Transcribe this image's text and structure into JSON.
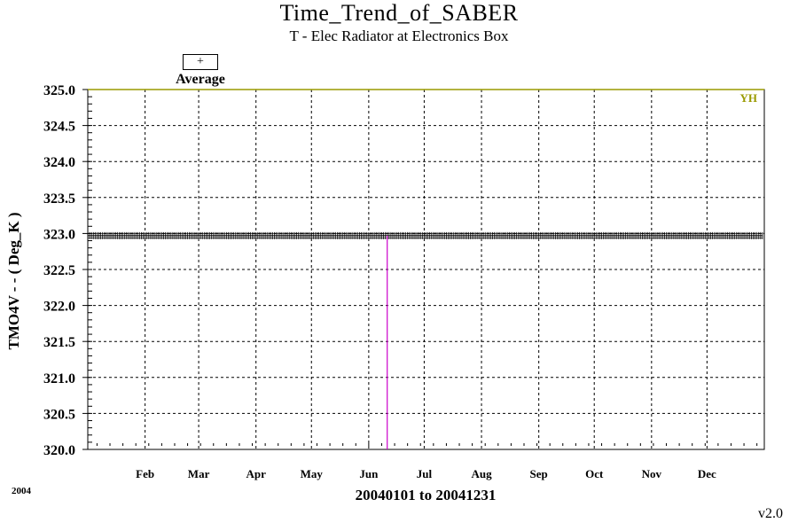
{
  "chart_data": {
    "type": "line",
    "title": "Time_Trend_of_SABER",
    "subtitle": "T - Elec Radiator at Electronics Box",
    "ylabel": "TMO4V  - - ( Deg_K )",
    "xrange_label": "20040101 to 20041231",
    "year_label": "2004",
    "ylim": [
      320.0,
      325.0
    ],
    "yticks": [
      "320.0",
      "320.5",
      "321.0",
      "321.5",
      "322.0",
      "322.5",
      "323.0",
      "323.5",
      "324.0",
      "324.5",
      "325.0"
    ],
    "xticks": [
      "Feb",
      "Mar",
      "Apr",
      "May",
      "Jun",
      "Jul",
      "Aug",
      "Sep",
      "Oct",
      "Nov",
      "Dec"
    ],
    "xtick_doy": [
      32,
      61,
      92,
      122,
      153,
      183,
      214,
      245,
      275,
      306,
      336
    ],
    "xlim_doy": [
      1,
      367
    ],
    "legend": {
      "symbol": "+",
      "label": "Average",
      "placement": "top-left"
    },
    "limit_label": "YH",
    "yellow_high_limit": 325.0,
    "series": [
      {
        "name": "Average",
        "value": 322.97,
        "doy_start": 1,
        "doy_end": 366
      }
    ],
    "gap_marker_doy": 163,
    "grid": true,
    "colors": {
      "series": "#000000",
      "limit": "#9a9a00",
      "marker": "#cc00cc",
      "grid": "#000000"
    }
  },
  "footer": {
    "version": "v2.0"
  }
}
